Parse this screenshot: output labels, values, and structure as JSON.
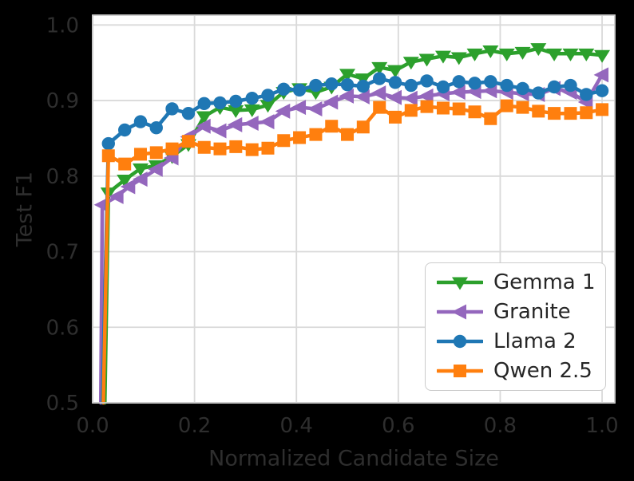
{
  "figure": {
    "background": "#000000"
  },
  "chart_data": {
    "type": "line",
    "title": "",
    "xlabel": "Normalized Candidate Size",
    "ylabel": "Test F1",
    "xlim": [
      0,
      1.025
    ],
    "ylim": [
      0.5,
      1.013
    ],
    "xticks": [
      0.0,
      0.2,
      0.4,
      0.6,
      0.8,
      1.0
    ],
    "yticks": [
      0.5,
      0.6,
      0.7,
      0.8,
      0.9,
      1.0
    ],
    "xtick_labels": [
      "0.0",
      "0.2",
      "0.4",
      "0.6",
      "0.8",
      "1.0"
    ],
    "ytick_labels": [
      "0.5",
      "0.6",
      "0.7",
      "0.8",
      "0.9",
      "1.0"
    ],
    "grid": true,
    "axes_background": "#ffffff",
    "grid_color": "#d9d9d9",
    "spine_color": "#cacaca",
    "text_color": "#2e2e2e",
    "legend_position": "lower right",
    "series": [
      {
        "name": "Gemma 1",
        "color": "#2ca02c",
        "marker": "triangle-down",
        "lead_x": 0.024,
        "x": [
          0.031,
          0.063,
          0.094,
          0.125,
          0.156,
          0.188,
          0.219,
          0.25,
          0.281,
          0.313,
          0.344,
          0.375,
          0.406,
          0.438,
          0.469,
          0.5,
          0.531,
          0.563,
          0.594,
          0.625,
          0.656,
          0.688,
          0.719,
          0.75,
          0.781,
          0.813,
          0.844,
          0.875,
          0.906,
          0.938,
          0.969,
          1.0
        ],
        "y": [
          0.778,
          0.795,
          0.81,
          0.814,
          0.826,
          0.842,
          0.879,
          0.891,
          0.887,
          0.888,
          0.894,
          0.911,
          0.916,
          0.911,
          0.918,
          0.935,
          0.929,
          0.944,
          0.94,
          0.951,
          0.955,
          0.959,
          0.957,
          0.962,
          0.966,
          0.962,
          0.964,
          0.969,
          0.962,
          0.962,
          0.962,
          0.96
        ]
      },
      {
        "name": "Granite",
        "color": "#9467bd",
        "marker": "triangle-left",
        "lead_x": 0.016,
        "x": [
          0.019,
          0.048,
          0.071,
          0.095,
          0.125,
          0.156,
          0.188,
          0.219,
          0.25,
          0.281,
          0.313,
          0.344,
          0.375,
          0.406,
          0.438,
          0.469,
          0.5,
          0.531,
          0.563,
          0.594,
          0.625,
          0.656,
          0.688,
          0.719,
          0.75,
          0.781,
          0.813,
          0.844,
          0.875,
          0.906,
          0.938,
          0.969,
          1.0
        ],
        "y": [
          0.762,
          0.773,
          0.786,
          0.796,
          0.809,
          0.824,
          0.852,
          0.866,
          0.86,
          0.868,
          0.87,
          0.872,
          0.886,
          0.891,
          0.889,
          0.898,
          0.906,
          0.905,
          0.91,
          0.904,
          0.903,
          0.906,
          0.909,
          0.911,
          0.912,
          0.913,
          0.911,
          0.909,
          0.908,
          0.916,
          0.911,
          0.898,
          0.934
        ]
      },
      {
        "name": "Llama 2",
        "color": "#1f77b4",
        "marker": "circle",
        "lead_x": 0.019,
        "x": [
          0.031,
          0.063,
          0.094,
          0.125,
          0.156,
          0.188,
          0.219,
          0.25,
          0.281,
          0.313,
          0.344,
          0.375,
          0.406,
          0.438,
          0.469,
          0.5,
          0.531,
          0.563,
          0.594,
          0.625,
          0.656,
          0.688,
          0.719,
          0.75,
          0.781,
          0.813,
          0.844,
          0.875,
          0.906,
          0.938,
          0.969,
          1.0
        ],
        "y": [
          0.843,
          0.861,
          0.872,
          0.864,
          0.889,
          0.883,
          0.896,
          0.897,
          0.899,
          0.903,
          0.907,
          0.915,
          0.914,
          0.92,
          0.922,
          0.921,
          0.919,
          0.929,
          0.924,
          0.92,
          0.926,
          0.918,
          0.925,
          0.923,
          0.925,
          0.92,
          0.916,
          0.91,
          0.918,
          0.92,
          0.908,
          0.913
        ]
      },
      {
        "name": "Qwen 2.5",
        "color": "#ff7f0e",
        "marker": "square",
        "lead_x": 0.021,
        "x": [
          0.031,
          0.063,
          0.094,
          0.125,
          0.156,
          0.188,
          0.219,
          0.25,
          0.281,
          0.313,
          0.344,
          0.375,
          0.406,
          0.438,
          0.469,
          0.5,
          0.531,
          0.563,
          0.594,
          0.625,
          0.656,
          0.688,
          0.719,
          0.75,
          0.781,
          0.813,
          0.844,
          0.875,
          0.906,
          0.938,
          0.969,
          1.0
        ],
        "y": [
          0.827,
          0.816,
          0.829,
          0.831,
          0.836,
          0.846,
          0.838,
          0.836,
          0.839,
          0.835,
          0.837,
          0.847,
          0.851,
          0.855,
          0.866,
          0.855,
          0.865,
          0.891,
          0.878,
          0.887,
          0.892,
          0.89,
          0.889,
          0.885,
          0.876,
          0.893,
          0.891,
          0.886,
          0.883,
          0.883,
          0.884,
          0.888
        ]
      }
    ]
  }
}
